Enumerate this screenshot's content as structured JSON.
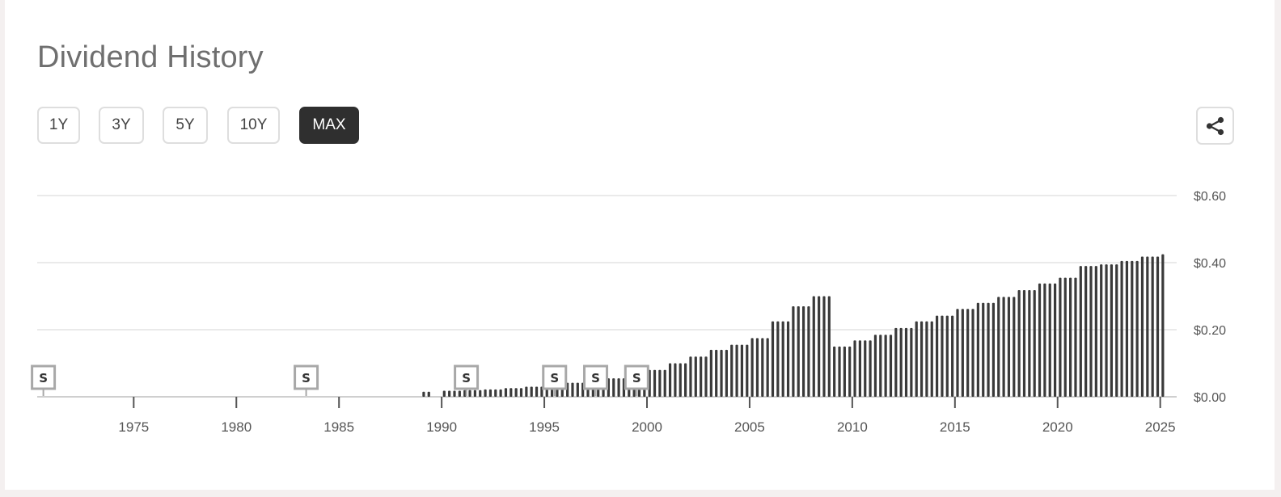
{
  "header": {
    "title": "Dividend History"
  },
  "ranges": [
    {
      "label": "1Y",
      "active": false
    },
    {
      "label": "3Y",
      "active": false
    },
    {
      "label": "5Y",
      "active": false
    },
    {
      "label": "10Y",
      "active": false
    },
    {
      "label": "MAX",
      "active": true
    }
  ],
  "icons": {
    "share": "share-icon"
  },
  "colors": {
    "bar": "#3a3a3a",
    "active_button": "#2f2f2f",
    "split_marker": "#a8a8a8"
  },
  "chart_data": {
    "type": "bar",
    "title": "",
    "xlabel": "",
    "ylabel": "",
    "x_range": [
      1970.3,
      2025.8
    ],
    "ylim": [
      0,
      0.6
    ],
    "x_ticks": [
      1975,
      1980,
      1985,
      1990,
      1995,
      2000,
      2005,
      2010,
      2015,
      2020,
      2025
    ],
    "y_ticks": [
      {
        "value": 0.6,
        "label": "$0.60"
      },
      {
        "value": 0.4,
        "label": "$0.40"
      },
      {
        "value": 0.2,
        "label": "$0.20"
      },
      {
        "value": 0.0,
        "label": "$0.00"
      }
    ],
    "grid": true,
    "quarterly_dividends": [
      {
        "year": 1989,
        "values": [
          0.015,
          0.015
        ]
      },
      {
        "year": 1990,
        "values": [
          0.018,
          0.018,
          0.018,
          0.018
        ]
      },
      {
        "year": 1991,
        "values": [
          0.02,
          0.02,
          0.02,
          0.02
        ]
      },
      {
        "year": 1992,
        "values": [
          0.022,
          0.022,
          0.022,
          0.022
        ]
      },
      {
        "year": 1993,
        "values": [
          0.026,
          0.026,
          0.026,
          0.026
        ]
      },
      {
        "year": 1994,
        "values": [
          0.03,
          0.03,
          0.03,
          0.03
        ]
      },
      {
        "year": 1995,
        "values": [
          0.033,
          0.033,
          0.033,
          0.033
        ]
      },
      {
        "year": 1996,
        "values": [
          0.042,
          0.042,
          0.042,
          0.042
        ]
      },
      {
        "year": 1997,
        "values": [
          0.048,
          0.048,
          0.048,
          0.048
        ]
      },
      {
        "year": 1998,
        "values": [
          0.055,
          0.055,
          0.055,
          0.055
        ]
      },
      {
        "year": 1999,
        "values": [
          0.065,
          0.065,
          0.065,
          0.065
        ]
      },
      {
        "year": 2000,
        "values": [
          0.08,
          0.08,
          0.08,
          0.08
        ]
      },
      {
        "year": 2001,
        "values": [
          0.1,
          0.1,
          0.1,
          0.1
        ]
      },
      {
        "year": 2002,
        "values": [
          0.12,
          0.12,
          0.12,
          0.12
        ]
      },
      {
        "year": 2003,
        "values": [
          0.14,
          0.14,
          0.14,
          0.14
        ]
      },
      {
        "year": 2004,
        "values": [
          0.155,
          0.155,
          0.155,
          0.155
        ]
      },
      {
        "year": 2005,
        "values": [
          0.175,
          0.175,
          0.175,
          0.175
        ]
      },
      {
        "year": 2006,
        "values": [
          0.225,
          0.225,
          0.225,
          0.225
        ]
      },
      {
        "year": 2007,
        "values": [
          0.27,
          0.27,
          0.27,
          0.27
        ]
      },
      {
        "year": 2008,
        "values": [
          0.3,
          0.3,
          0.3,
          0.3
        ]
      },
      {
        "year": 2009,
        "values": [
          0.15,
          0.15,
          0.15,
          0.15
        ]
      },
      {
        "year": 2010,
        "values": [
          0.168,
          0.168,
          0.168,
          0.168
        ]
      },
      {
        "year": 2011,
        "values": [
          0.185,
          0.185,
          0.185,
          0.185
        ]
      },
      {
        "year": 2012,
        "values": [
          0.205,
          0.205,
          0.205,
          0.205
        ]
      },
      {
        "year": 2013,
        "values": [
          0.225,
          0.225,
          0.225,
          0.225
        ]
      },
      {
        "year": 2014,
        "values": [
          0.242,
          0.242,
          0.242,
          0.242
        ]
      },
      {
        "year": 2015,
        "values": [
          0.262,
          0.262,
          0.262,
          0.262
        ]
      },
      {
        "year": 2016,
        "values": [
          0.28,
          0.28,
          0.28,
          0.28
        ]
      },
      {
        "year": 2017,
        "values": [
          0.298,
          0.298,
          0.298,
          0.298
        ]
      },
      {
        "year": 2018,
        "values": [
          0.318,
          0.318,
          0.318,
          0.318
        ]
      },
      {
        "year": 2019,
        "values": [
          0.338,
          0.338,
          0.338,
          0.338
        ]
      },
      {
        "year": 2020,
        "values": [
          0.355,
          0.355,
          0.355,
          0.355
        ]
      },
      {
        "year": 2021,
        "values": [
          0.39,
          0.39,
          0.39,
          0.39
        ]
      },
      {
        "year": 2022,
        "values": [
          0.395,
          0.395,
          0.395,
          0.395
        ]
      },
      {
        "year": 2023,
        "values": [
          0.405,
          0.405,
          0.405,
          0.405
        ]
      },
      {
        "year": 2024,
        "values": [
          0.418,
          0.418,
          0.418,
          0.418
        ]
      },
      {
        "year": 2025,
        "values": [
          0.425
        ]
      }
    ],
    "split_markers": [
      {
        "label": "S",
        "x": 1970.6
      },
      {
        "label": "S",
        "x": 1983.4
      },
      {
        "label": "S",
        "x": 1991.2
      },
      {
        "label": "S",
        "x": 1995.5
      },
      {
        "label": "S",
        "x": 1997.5
      },
      {
        "label": "S",
        "x": 1999.5
      }
    ]
  }
}
